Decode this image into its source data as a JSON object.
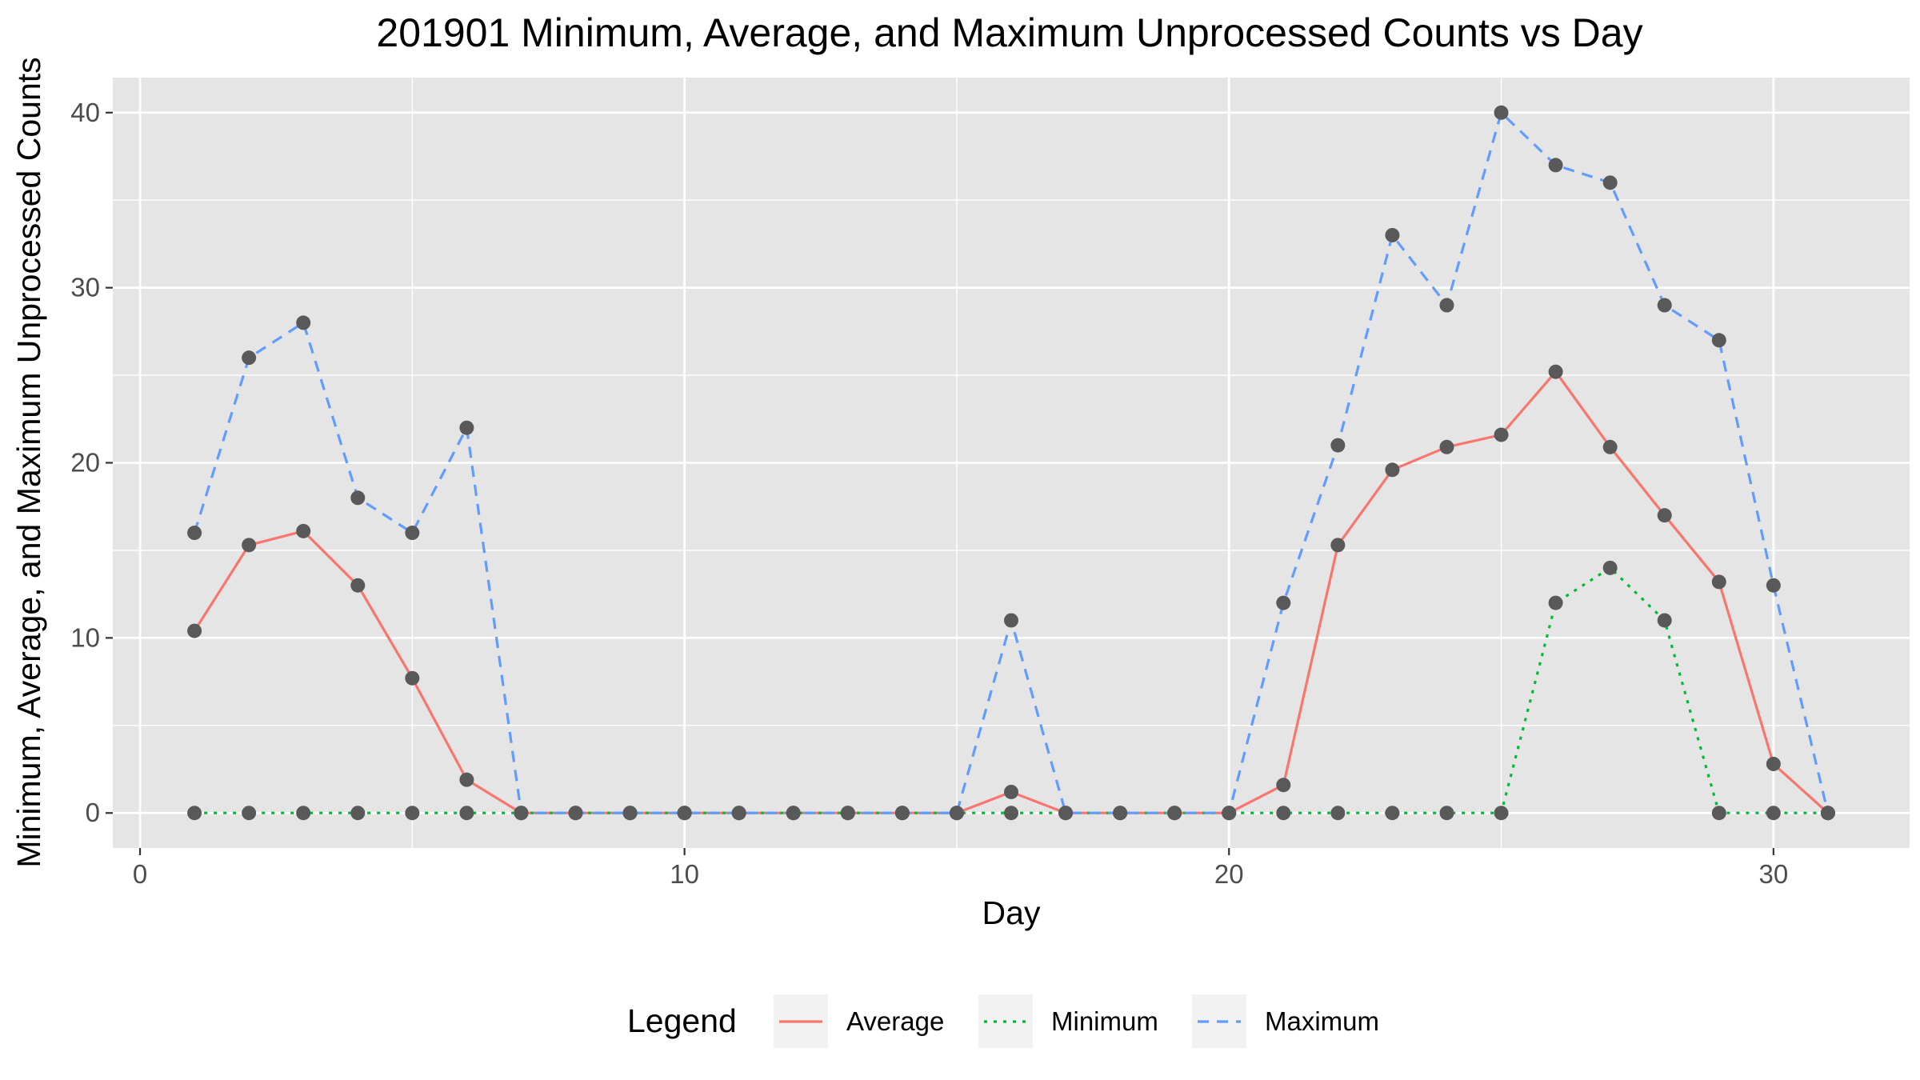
{
  "chart_data": {
    "type": "line",
    "title": "201901 Minimum, Average, and Maximum Unprocessed Counts vs Day",
    "xlabel": "Day",
    "ylabel": "Minimum, Average, and Maximum Unprocessed Counts",
    "xlim": [
      -0.5,
      32.5
    ],
    "ylim": [
      -2,
      42
    ],
    "xticks": [
      0,
      10,
      20,
      30
    ],
    "yticks": [
      0,
      10,
      20,
      30,
      40
    ],
    "grid": true,
    "legend": {
      "title": "Legend",
      "placement": "bottom"
    },
    "x": [
      1,
      2,
      3,
      4,
      5,
      6,
      7,
      8,
      9,
      10,
      11,
      12,
      13,
      14,
      15,
      16,
      17,
      18,
      19,
      20,
      21,
      22,
      23,
      24,
      25,
      26,
      27,
      28,
      29,
      30,
      31
    ],
    "series": [
      {
        "name": "Average",
        "color": "#F8766D",
        "dash": "solid",
        "values": [
          10.4,
          15.3,
          16.1,
          13.0,
          7.7,
          1.9,
          0,
          0,
          0,
          0,
          0,
          0,
          0,
          0,
          0,
          1.2,
          0,
          0,
          0,
          0,
          1.6,
          15.3,
          19.6,
          20.9,
          21.6,
          25.2,
          20.9,
          17.0,
          13.2,
          2.8,
          0
        ]
      },
      {
        "name": "Minimum",
        "color": "#00BA38",
        "dash": "dotted",
        "values": [
          0,
          0,
          0,
          0,
          0,
          0,
          0,
          0,
          0,
          0,
          0,
          0,
          0,
          0,
          0,
          0,
          0,
          0,
          0,
          0,
          0,
          0,
          0,
          0,
          0,
          12,
          14,
          11,
          0,
          0,
          0
        ]
      },
      {
        "name": "Maximum",
        "color": "#619CFF",
        "dash": "dashed",
        "values": [
          16,
          26,
          28,
          18,
          16,
          22,
          0,
          0,
          0,
          0,
          0,
          0,
          0,
          0,
          0,
          11,
          0,
          0,
          0,
          0,
          12,
          21,
          33,
          29,
          40,
          37,
          36,
          29,
          27,
          13,
          0
        ]
      }
    ],
    "point_color": "#595959",
    "panel_background": "#E5E5E5",
    "grid_color": "#FFFFFF"
  }
}
